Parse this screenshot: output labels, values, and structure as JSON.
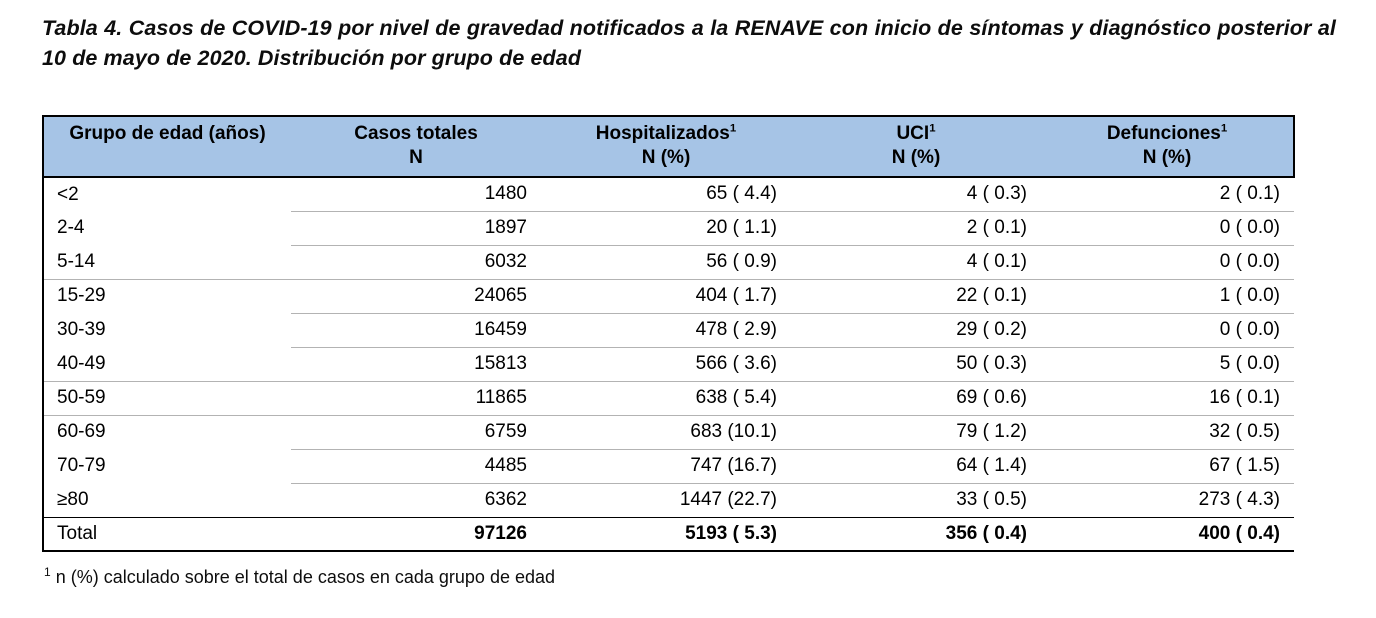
{
  "title": "Tabla 4. Casos de COVID-19 por nivel de gravedad notificados a la RENAVE con inicio de síntomas y diagnóstico posterior al 10 de mayo de 2020. Distribución por grupo de edad",
  "style": {
    "header_bg": "#a6c4e6",
    "border_black": "#000000",
    "separator_gray": "#b3b3b3"
  },
  "table": {
    "headers": [
      {
        "label": "Grupo de edad (años)",
        "sup": "",
        "sub": ""
      },
      {
        "label": "Casos totales",
        "sup": "",
        "sub": "N"
      },
      {
        "label": "Hospitalizados",
        "sup": "1",
        "sub": "N (%)"
      },
      {
        "label": "UCI",
        "sup": "1",
        "sub": "N (%)"
      },
      {
        "label": "Defunciones",
        "sup": "1",
        "sub": "N (%)"
      }
    ],
    "rows": [
      [
        "<2",
        "1480",
        "65 ( 4.4)",
        "4 ( 0.3)",
        "2 ( 0.1)"
      ],
      [
        "2-4",
        "1897",
        "20 ( 1.1)",
        "2 ( 0.1)",
        "0 ( 0.0)"
      ],
      [
        "5-14",
        "6032",
        "56 ( 0.9)",
        "4 ( 0.1)",
        "0 ( 0.0)"
      ],
      [
        "15-29",
        "24065",
        "404 ( 1.7)",
        "22 ( 0.1)",
        "1 ( 0.0)"
      ],
      [
        "30-39",
        "16459",
        "478 ( 2.9)",
        "29 ( 0.2)",
        "0 ( 0.0)"
      ],
      [
        "40-49",
        "15813",
        "566 ( 3.6)",
        "50 ( 0.3)",
        "5 ( 0.0)"
      ],
      [
        "50-59",
        "11865",
        "638 ( 5.4)",
        "69 ( 0.6)",
        "16 ( 0.1)"
      ],
      [
        "60-69",
        "6759",
        "683 (10.1)",
        "79 ( 1.2)",
        "32 ( 0.5)"
      ],
      [
        "70-79",
        "4485",
        "747 (16.7)",
        "64 ( 1.4)",
        "67 ( 1.5)"
      ],
      [
        "≥80",
        "6362",
        "1447 (22.7)",
        "33 ( 0.5)",
        "273 ( 4.3)"
      ]
    ],
    "total_row": [
      "Total",
      "97126",
      "5193 ( 5.3)",
      "356 ( 0.4)",
      "400 ( 0.4)"
    ]
  },
  "footnote": {
    "sup": "1",
    "text": " n (%) calculado sobre el total de casos en cada grupo de edad"
  }
}
